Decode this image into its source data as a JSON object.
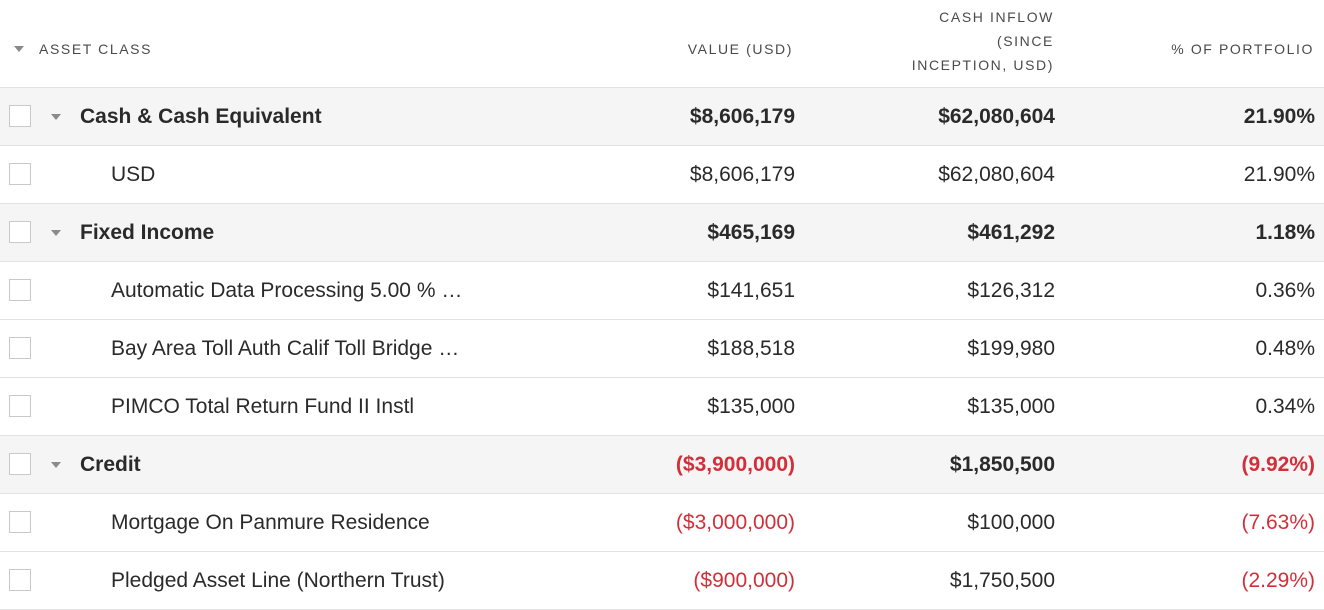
{
  "header": {
    "asset_class": "ASSET CLASS",
    "value": "VALUE (USD)",
    "cash_inflow": "CASH INFLOW\n(SINCE\nINCEPTION, USD)",
    "pct_portfolio": "% OF PORTFOLIO"
  },
  "colors": {
    "negative": "#d32f3a",
    "group_background": "#f5f5f5"
  },
  "rows": [
    {
      "type": "group",
      "name": "Cash & Cash Equivalent",
      "value": "$8,606,179",
      "cash_inflow": "$62,080,604",
      "pct": "21.90%",
      "value_negative": false,
      "pct_negative": false
    },
    {
      "type": "child",
      "name": "USD",
      "value": "$8,606,179",
      "cash_inflow": "$62,080,604",
      "pct": "21.90%",
      "value_negative": false,
      "pct_negative": false
    },
    {
      "type": "group",
      "name": "Fixed Income",
      "value": "$465,169",
      "cash_inflow": "$461,292",
      "pct": "1.18%",
      "value_negative": false,
      "pct_negative": false
    },
    {
      "type": "child",
      "name": "Automatic Data Processing 5.00 % …",
      "value": "$141,651",
      "cash_inflow": "$126,312",
      "pct": "0.36%",
      "value_negative": false,
      "pct_negative": false
    },
    {
      "type": "child",
      "name": "Bay Area Toll Auth Calif Toll Bridge …",
      "value": "$188,518",
      "cash_inflow": "$199,980",
      "pct": "0.48%",
      "value_negative": false,
      "pct_negative": false
    },
    {
      "type": "child",
      "name": "PIMCO Total Return Fund II Instl",
      "value": "$135,000",
      "cash_inflow": "$135,000",
      "pct": "0.34%",
      "value_negative": false,
      "pct_negative": false
    },
    {
      "type": "group",
      "name": "Credit",
      "value": "($3,900,000)",
      "cash_inflow": "$1,850,500",
      "pct": "(9.92%)",
      "value_negative": true,
      "pct_negative": true
    },
    {
      "type": "child",
      "name": "Mortgage On Panmure Residence",
      "value": "($3,000,000)",
      "cash_inflow": "$100,000",
      "pct": "(7.63%)",
      "value_negative": true,
      "pct_negative": true
    },
    {
      "type": "child",
      "name": "Pledged Asset Line (Northern Trust)",
      "value": "($900,000)",
      "cash_inflow": "$1,750,500",
      "pct": "(2.29%)",
      "value_negative": true,
      "pct_negative": true
    }
  ]
}
